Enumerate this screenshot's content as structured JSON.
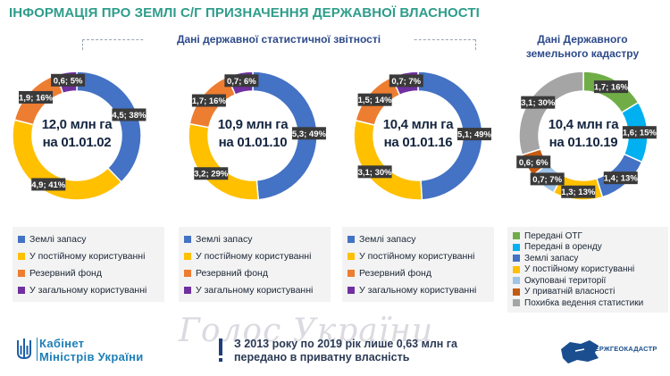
{
  "page_title": "ІНФОРМАЦІЯ ПРО ЗЕМЛІ С/Г ПРИЗНАЧЕННЯ ДЕРЖАВНОЇ ВЛАСНОСТІ",
  "section_statistical": "Дані державної статистичної звітності",
  "section_cadastre": "Дані Державного земельного кадастру",
  "colors": {
    "title": "#2e9d8a",
    "blue": "#4472c4",
    "yellow": "#ffc000",
    "orange": "#ed7d31",
    "purple": "#7030a0",
    "green": "#70ad47",
    "cyan": "#00b0f0",
    "light_blue": "#9dc3e6",
    "dark_orange": "#c55a11",
    "gray": "#a5a5a5"
  },
  "chart_data": [
    {
      "type": "pie",
      "donut": true,
      "center_line1": "12,0 млн га",
      "center_line2": "на 01.01.02",
      "slices": [
        {
          "name": "Землі запасу",
          "value": 4.5,
          "label": "4,5; 38%",
          "color": "#4472c4"
        },
        {
          "name": "У постійному користуванні",
          "value": 4.9,
          "label": "4,9; 41%",
          "color": "#ffc000"
        },
        {
          "name": "Резервний фонд",
          "value": 1.9,
          "label": "1,9; 16%",
          "color": "#ed7d31"
        },
        {
          "name": "У загальному користуванні",
          "value": 0.6,
          "label": "0,6; 5%",
          "color": "#7030a0"
        }
      ]
    },
    {
      "type": "pie",
      "donut": true,
      "center_line1": "10,9 млн га",
      "center_line2": "на 01.01.10",
      "slices": [
        {
          "name": "Землі запасу",
          "value": 5.3,
          "label": "5,3; 49%",
          "color": "#4472c4"
        },
        {
          "name": "У постійному користуванні",
          "value": 3.2,
          "label": "3,2; 29%",
          "color": "#ffc000"
        },
        {
          "name": "Резервний фонд",
          "value": 1.7,
          "label": "1,7; 16%",
          "color": "#ed7d31"
        },
        {
          "name": "У загальному користуванні",
          "value": 0.7,
          "label": "0,7; 6%",
          "color": "#7030a0"
        }
      ]
    },
    {
      "type": "pie",
      "donut": true,
      "center_line1": "10,4 млн га",
      "center_line2": "на 01.01.16",
      "slices": [
        {
          "name": "Землі запасу",
          "value": 5.1,
          "label": "5,1; 49%",
          "color": "#4472c4"
        },
        {
          "name": "У постійному користуванні",
          "value": 3.1,
          "label": "3,1; 30%",
          "color": "#ffc000"
        },
        {
          "name": "Резервний фонд",
          "value": 1.5,
          "label": "1,5; 14%",
          "color": "#ed7d31"
        },
        {
          "name": "У загальному користуванні",
          "value": 0.7,
          "label": "0,7; 7%",
          "color": "#7030a0"
        }
      ]
    },
    {
      "type": "pie",
      "donut": true,
      "center_line1": "10,4 млн га",
      "center_line2": "на 01.10.19",
      "slices": [
        {
          "name": "Передані ОТГ",
          "value": 1.7,
          "label": "1,7; 16%",
          "color": "#70ad47"
        },
        {
          "name": "Передані в оренду",
          "value": 1.6,
          "label": "1,6; 15%",
          "color": "#00b0f0"
        },
        {
          "name": "Землі запасу",
          "value": 1.4,
          "label": "1,4; 13%",
          "color": "#4472c4"
        },
        {
          "name": "У постійному користуванні",
          "value": 1.3,
          "label": "1,3; 13%",
          "color": "#ffc000"
        },
        {
          "name": "Окуповані території",
          "value": 0.7,
          "label": "0,7; 7%",
          "color": "#9dc3e6"
        },
        {
          "name": "У приватній власності",
          "value": 0.6,
          "label": "0,6; 6%",
          "color": "#c55a11"
        },
        {
          "name": "Похибка ведення статистики",
          "value": 3.1,
          "label": "3,1; 30%",
          "color": "#a5a5a5"
        }
      ]
    }
  ],
  "legend_statistical": [
    {
      "label": "Землі запасу",
      "color": "#4472c4"
    },
    {
      "label": "У постійному користуванні",
      "color": "#ffc000"
    },
    {
      "label": "Резервний фонд",
      "color": "#ed7d31"
    },
    {
      "label": "У загальному користуванні",
      "color": "#7030a0"
    }
  ],
  "legend_cadastre": [
    {
      "label": "Передані ОТГ",
      "color": "#70ad47"
    },
    {
      "label": "Передані в оренду",
      "color": "#00b0f0"
    },
    {
      "label": "Землі запасу",
      "color": "#4472c4"
    },
    {
      "label": "У постійному користуванні",
      "color": "#ffc000"
    },
    {
      "label": "Окуповані території",
      "color": "#9dc3e6"
    },
    {
      "label": "У приватній власності",
      "color": "#c55a11"
    },
    {
      "label": "Похибка ведення статистики",
      "color": "#a5a5a5"
    }
  ],
  "footer": {
    "org_line1": "Кабінет",
    "org_line2": "Міністрів України",
    "note_line1": "З 2013 року по 2019 рік  лише 0,63 млн га",
    "note_line2": "передано в приватну власність",
    "agency": "ДЕРЖГЕОКАДАСТР",
    "watermark": "Голос України"
  }
}
